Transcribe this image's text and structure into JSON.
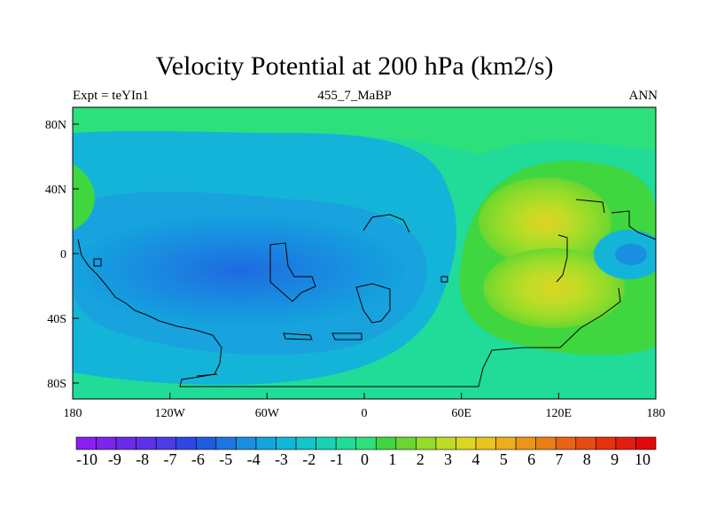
{
  "chart_data": {
    "type": "heatmap",
    "title": "Velocity Potential at 200 hPa (km2/s)",
    "left_string": "Expt = teYIn1",
    "center_string": "455_7_MaBP",
    "right_string": "ANN",
    "x_ticks": [
      "180",
      "120W",
      "60W",
      "0",
      "60E",
      "120E",
      "180"
    ],
    "y_ticks": [
      "80N",
      "40N",
      "0",
      "40S",
      "80S"
    ],
    "xlim": [
      -180,
      180
    ],
    "ylim": [
      -90,
      90
    ],
    "colorbar_labels": [
      "-10",
      "-9",
      "-8",
      "-7",
      "-6",
      "-5",
      "-4",
      "-3",
      "-2",
      "-1",
      "0",
      "1",
      "2",
      "3",
      "4",
      "5",
      "6",
      "7",
      "8",
      "9",
      "10"
    ],
    "colorbar_colors": [
      "#8a1ef0",
      "#7a24ee",
      "#6a2aeb",
      "#5a30e8",
      "#4a3ce6",
      "#2f46e2",
      "#1f5ce0",
      "#1e74e0",
      "#1a8ee0",
      "#14a4de",
      "#10b8d8",
      "#12c6cc",
      "#18d2b4",
      "#20dc98",
      "#2ee07c",
      "#40d640",
      "#6ad630",
      "#94dc2a",
      "#bedc26",
      "#dad622",
      "#e8c41e",
      "#ecae1a",
      "#ec9618",
      "#ea7e16",
      "#e86414",
      "#e64c12",
      "#e43210",
      "#e21e10",
      "#e00a0a"
    ],
    "value_range": [
      -10,
      10
    ],
    "regions": [
      {
        "label": "background",
        "value": 1.2,
        "color": "#20dc98"
      },
      {
        "label": "northern high latitudes",
        "value": 1.8,
        "color": "#26de8c"
      },
      {
        "label": "Pacific-Atlantic trough",
        "value": -1.0,
        "color": "#12c6cc"
      },
      {
        "label": "tropical Pacific minimum",
        "value": -4.5,
        "color": "#1e74e0"
      },
      {
        "label": "Asian maximum north",
        "value": 5.2,
        "color": "#dad622"
      },
      {
        "label": "Asian maximum south",
        "value": 5.2,
        "color": "#dad622"
      }
    ]
  }
}
